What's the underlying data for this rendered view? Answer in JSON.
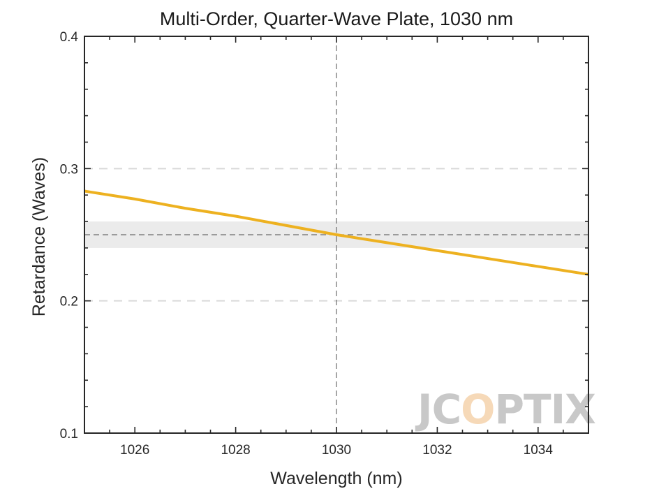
{
  "chart_data": {
    "type": "line",
    "title": "Multi-Order, Quarter-Wave Plate, 1030 nm",
    "xlabel": "Wavelength (nm)",
    "ylabel": "Retardance (Waves)",
    "xlim": [
      1025,
      1035
    ],
    "ylim": [
      0.1,
      0.4
    ],
    "xticks": [
      1026,
      1028,
      1030,
      1032,
      1034
    ],
    "yticks": [
      0.1,
      0.2,
      0.3,
      0.4
    ],
    "ytick_labels": [
      "0.1",
      "0.2",
      "0.3",
      "0.4"
    ],
    "grid": "dashed horizontal lines at 0.2 and 0.3",
    "legend": "none",
    "series": [
      {
        "x": [
          1025,
          1026,
          1027,
          1028,
          1029,
          1030,
          1031,
          1032,
          1033,
          1034,
          1035
        ],
        "values": [
          0.283,
          0.277,
          0.27,
          0.264,
          0.257,
          0.25,
          0.244,
          0.238,
          0.232,
          0.226,
          0.22
        ],
        "color": "#EDB120"
      }
    ],
    "annotations": {
      "tolerance_band": {
        "y_from": 0.24,
        "y_to": 0.26,
        "color": "#ebebeb"
      },
      "target_retardance": 0.25,
      "center_wavelength": 1030
    },
    "logo": {
      "text": "JCOPTIX",
      "color": "#c8c8c8",
      "accent_color": "#f6d9b8"
    }
  }
}
